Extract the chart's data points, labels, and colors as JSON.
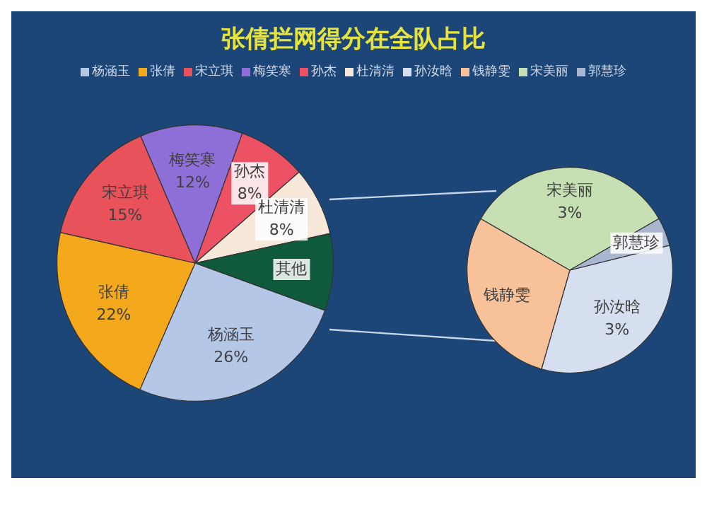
{
  "chart_data": [
    {
      "type": "pie",
      "title": "张倩拦网得分在全队占比",
      "legend": "top",
      "categories": [
        "杨涵玉",
        "张倩",
        "宋立琪",
        "梅笑寒",
        "孙杰",
        "杜清清",
        "其他"
      ],
      "values": [
        26,
        22,
        15,
        12,
        8,
        8,
        9
      ],
      "value_labels": [
        "26%",
        "22%",
        "15%",
        "12%",
        "8%",
        "8%",
        null
      ],
      "colors": [
        "#b4c7e7",
        "#f4a81c",
        "#e9525a",
        "#8e6fd8",
        "#ec5264",
        "#f8e8da",
        "#0f5a3c"
      ]
    },
    {
      "type": "pie",
      "legend": "top",
      "categories": [
        "孙汝晗",
        "钱静雯",
        "宋美丽",
        "郭慧珍"
      ],
      "values": [
        3,
        2.6,
        3,
        0.4
      ],
      "value_labels": [
        "3%",
        null,
        "3%",
        null
      ],
      "colors": [
        "#d6dff0",
        "#f7c19a",
        "#c6e0b4",
        "#a9b6d0"
      ]
    }
  ]
}
